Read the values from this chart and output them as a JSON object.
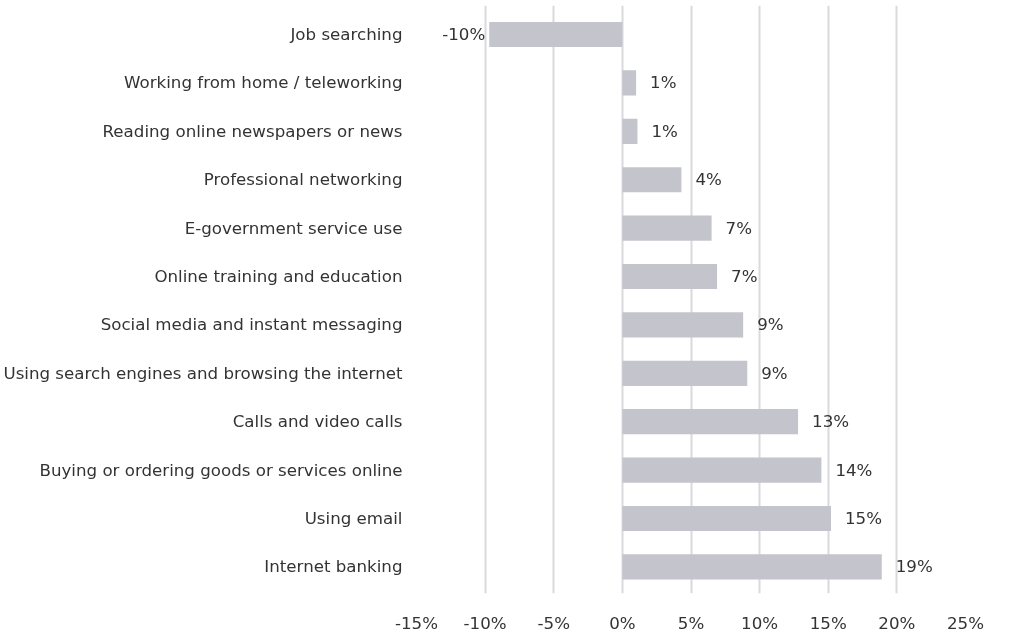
{
  "chart_data": {
    "type": "bar",
    "orientation": "horizontal",
    "categories": [
      "Job searching",
      "Working from home / teleworking",
      "Reading online newspapers or news",
      "Professional networking",
      "E-government service use",
      "Online training and education",
      "Social media and instant messaging",
      "Using search engines and browsing the internet",
      "Calls and video calls",
      "Buying or ordering goods or services online",
      "Using email",
      "Internet banking"
    ],
    "values": [
      -9.7,
      1.0,
      1.1,
      4.3,
      6.5,
      6.9,
      8.8,
      9.1,
      12.8,
      14.5,
      15.2,
      18.9
    ],
    "value_labels": [
      "-10%",
      "1%",
      "1%",
      "4%",
      "7%",
      "7%",
      "9%",
      "9%",
      "13%",
      "14%",
      "15%",
      "19%"
    ],
    "color": "#c4c4cc",
    "xlim": [
      -15,
      25
    ],
    "xticks": [
      {
        "value": -15,
        "label": "-15%"
      },
      {
        "value": -10,
        "label": "-10%"
      },
      {
        "value": -5,
        "label": "-5%"
      },
      {
        "value": 0,
        "label": "0%"
      },
      {
        "value": 5,
        "label": "5%"
      },
      {
        "value": 10,
        "label": "10%"
      },
      {
        "value": 15,
        "label": "15%"
      },
      {
        "value": 20,
        "label": "20%"
      },
      {
        "value": 25,
        "label": "25%"
      }
    ],
    "grid": "x"
  }
}
